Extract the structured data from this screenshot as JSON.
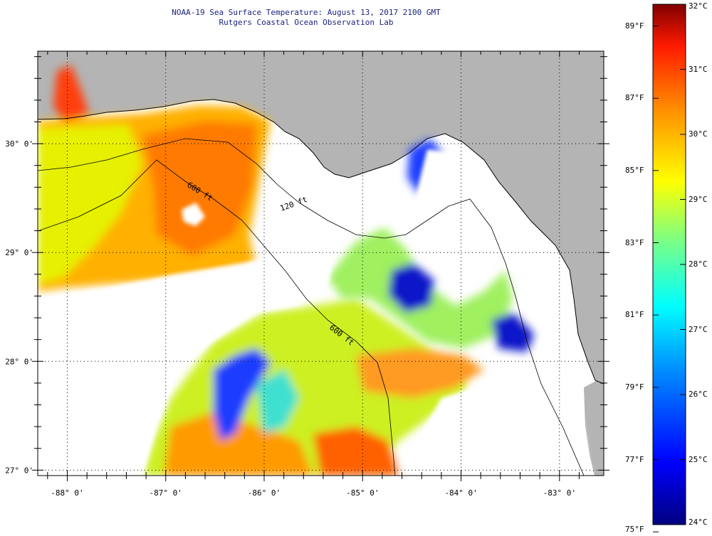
{
  "title": {
    "line1": "NOAA-19 Sea Surface Temperature:  August 13, 2017 2100 GMT",
    "line2": "Rutgers Coastal Ocean Observation Lab"
  },
  "axes": {
    "lon_labels": [
      "-88° 0'",
      "-87° 0'",
      "-86° 0'",
      "-85° 0'",
      "-84° 0'",
      "-83° 0'"
    ],
    "lon_values": [
      -88,
      -87,
      -86,
      -85,
      -84,
      -83
    ],
    "lat_labels": [
      "30° 0'",
      "29° 0'",
      "28° 0'",
      "27° 0'"
    ],
    "lat_values": [
      30,
      29,
      28,
      27
    ],
    "lon_range": [
      -88.3,
      -82.55
    ],
    "lat_range": [
      26.95,
      30.85
    ]
  },
  "contours": {
    "label_600": "600 ft",
    "label_120": "120 ft"
  },
  "colorbar": {
    "celsius_labels": [
      "32°C",
      "31°C",
      "30°C",
      "29°C",
      "28°C",
      "27°C",
      "26°C",
      "25°C",
      "24°C"
    ],
    "fahrenheit_labels": [
      "89°F",
      "87°F",
      "85°F",
      "83°F",
      "81°F",
      "79°F",
      "77°F",
      "75°F"
    ],
    "colors": [
      "#00007f",
      "#0000ff",
      "#0080ff",
      "#00ffff",
      "#80ff80",
      "#ffff00",
      "#ff8000",
      "#ff0000",
      "#7f0000"
    ]
  },
  "colors": {
    "land": "#b4b4b4",
    "cloud": "#ffffff",
    "title": "#1a237e"
  }
}
